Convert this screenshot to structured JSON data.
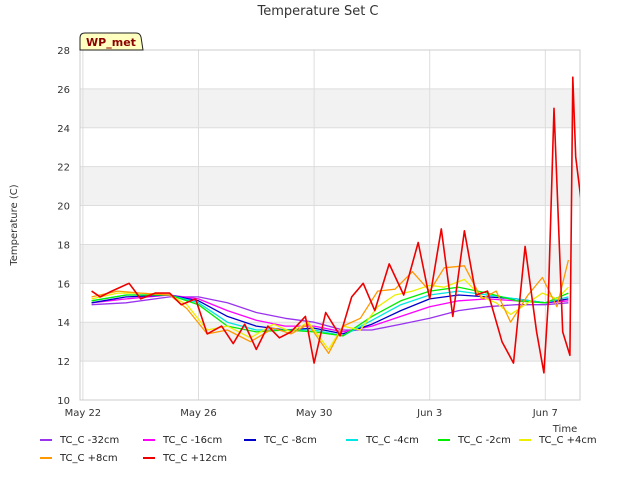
{
  "chart_data": {
    "type": "line",
    "title": "Temperature Set C",
    "xlabel": "Time",
    "ylabel": "Temperature (C)",
    "badge": "WP_met",
    "x_unit": "days since May 21",
    "xlim": [
      0.9,
      18.2
    ],
    "ylim": [
      10,
      28
    ],
    "yticks": [
      10,
      12,
      14,
      16,
      18,
      20,
      22,
      24,
      26,
      28
    ],
    "xticks": [
      {
        "value": 1,
        "label": "May 22"
      },
      {
        "value": 5,
        "label": "May 26"
      },
      {
        "value": 9,
        "label": "May 30"
      },
      {
        "value": 13,
        "label": "Jun 3"
      },
      {
        "value": 17,
        "label": "Jun 7"
      }
    ],
    "grid": true,
    "legend_position": "bottom",
    "series": [
      {
        "name": "TC_C -32cm",
        "color": "#9933ee",
        "x": [
          1.3,
          2.5,
          4.0,
          5.0,
          6.0,
          7.0,
          8.0,
          9.0,
          10.0,
          11.0,
          12.0,
          13.0,
          14.0,
          15.0,
          16.0,
          17.0,
          17.8
        ],
        "y": [
          14.9,
          15.0,
          15.3,
          15.3,
          15.0,
          14.5,
          14.2,
          14.0,
          13.6,
          13.6,
          13.9,
          14.2,
          14.6,
          14.8,
          14.9,
          14.9,
          15.0
        ]
      },
      {
        "name": "TC_C -16cm",
        "color": "#ff00ff",
        "x": [
          1.3,
          2.5,
          4.0,
          5.0,
          6.0,
          7.0,
          8.0,
          9.0,
          10.0,
          11.0,
          12.0,
          13.0,
          14.0,
          15.0,
          16.0,
          17.0,
          17.8
        ],
        "y": [
          15.0,
          15.2,
          15.4,
          15.2,
          14.6,
          14.1,
          13.8,
          13.8,
          13.5,
          13.8,
          14.3,
          14.8,
          15.1,
          15.2,
          15.1,
          15.0,
          15.1
        ]
      },
      {
        "name": "TC_C -8cm",
        "color": "#0000cc",
        "x": [
          1.3,
          2.5,
          4.0,
          5.0,
          6.0,
          7.0,
          8.0,
          9.0,
          10.0,
          11.0,
          12.0,
          13.0,
          14.0,
          15.0,
          16.0,
          17.0,
          17.8
        ],
        "y": [
          15.0,
          15.3,
          15.4,
          15.1,
          14.3,
          13.8,
          13.6,
          13.7,
          13.4,
          13.9,
          14.6,
          15.2,
          15.4,
          15.3,
          15.2,
          15.0,
          15.2
        ]
      },
      {
        "name": "TC_C -4cm",
        "color": "#00e5e5",
        "x": [
          1.3,
          2.5,
          4.0,
          5.0,
          6.0,
          7.0,
          8.0,
          9.0,
          10.0,
          11.0,
          12.0,
          13.0,
          14.0,
          15.0,
          16.0,
          17.0,
          17.8
        ],
        "y": [
          15.1,
          15.4,
          15.4,
          15.0,
          14.0,
          13.6,
          13.6,
          13.6,
          13.3,
          14.1,
          14.9,
          15.4,
          15.6,
          15.4,
          15.2,
          15.0,
          15.3
        ]
      },
      {
        "name": "TC_C -2cm",
        "color": "#00ee00",
        "x": [
          1.3,
          2.5,
          4.0,
          5.0,
          6.0,
          7.0,
          8.0,
          9.0,
          10.0,
          11.0,
          12.0,
          13.0,
          14.0,
          15.0,
          16.0,
          17.0,
          17.8
        ],
        "y": [
          15.1,
          15.4,
          15.4,
          14.9,
          13.8,
          13.5,
          13.6,
          13.5,
          13.3,
          14.3,
          15.1,
          15.6,
          15.8,
          15.5,
          15.1,
          15.0,
          15.5
        ]
      },
      {
        "name": "TC_C +4cm",
        "color": "#eeee00",
        "x": [
          1.3,
          2.2,
          3.0,
          4.0,
          4.6,
          5.3,
          6.0,
          6.8,
          7.6,
          8.2,
          8.8,
          9.5,
          10.0,
          10.6,
          11.2,
          11.8,
          12.4,
          13.0,
          13.5,
          14.2,
          14.8,
          15.3,
          15.8,
          16.4,
          16.9,
          17.4,
          17.8
        ],
        "y": [
          15.2,
          15.5,
          15.5,
          15.4,
          14.9,
          13.6,
          13.8,
          13.2,
          13.9,
          13.5,
          14.0,
          12.6,
          13.8,
          13.6,
          14.8,
          15.4,
          15.6,
          15.9,
          15.8,
          16.2,
          15.3,
          15.0,
          14.4,
          15.0,
          15.5,
          15.2,
          15.8
        ]
      },
      {
        "name": "TC_C +8cm",
        "color": "#ff9900",
        "x": [
          1.3,
          2.2,
          3.0,
          4.0,
          4.6,
          5.3,
          6.0,
          6.8,
          7.6,
          8.2,
          8.8,
          9.5,
          10.0,
          10.6,
          11.2,
          11.8,
          12.4,
          13.0,
          13.5,
          14.2,
          14.8,
          15.3,
          15.8,
          16.4,
          16.9,
          17.4,
          17.8
        ],
        "y": [
          15.3,
          15.6,
          15.5,
          15.4,
          14.7,
          13.4,
          13.6,
          13.0,
          13.7,
          13.4,
          13.9,
          12.4,
          13.8,
          14.2,
          15.6,
          15.7,
          16.6,
          15.6,
          16.8,
          16.9,
          15.2,
          15.6,
          14.0,
          15.4,
          16.3,
          14.8,
          17.2
        ]
      },
      {
        "name": "TC_C +12cm",
        "color": "#ee0000",
        "x": [
          1.3,
          1.6,
          2.0,
          2.6,
          3.0,
          3.5,
          4.0,
          4.4,
          4.9,
          5.3,
          5.8,
          6.2,
          6.6,
          7.0,
          7.4,
          7.8,
          8.2,
          8.7,
          9.0,
          9.4,
          9.9,
          10.3,
          10.7,
          11.1,
          11.6,
          12.1,
          12.6,
          13.0,
          13.4,
          13.8,
          14.2,
          14.6,
          15.0,
          15.5,
          15.9,
          16.3,
          16.7,
          16.95,
          17.1,
          17.3,
          17.6,
          17.85,
          17.95,
          18.05,
          18.3,
          18.6
        ],
        "y": [
          15.6,
          15.3,
          15.6,
          16.0,
          15.2,
          15.5,
          15.5,
          14.9,
          15.2,
          13.4,
          13.8,
          12.9,
          13.9,
          12.6,
          13.8,
          13.2,
          13.5,
          14.3,
          11.9,
          14.5,
          13.3,
          15.3,
          16.0,
          14.6,
          17.0,
          15.4,
          18.1,
          15.2,
          18.8,
          14.3,
          18.7,
          15.4,
          15.6,
          13.0,
          11.9,
          17.9,
          13.5,
          11.4,
          15.0,
          25.0,
          13.5,
          12.3,
          26.6,
          22.5,
          19.5,
          14.4
        ]
      }
    ]
  }
}
